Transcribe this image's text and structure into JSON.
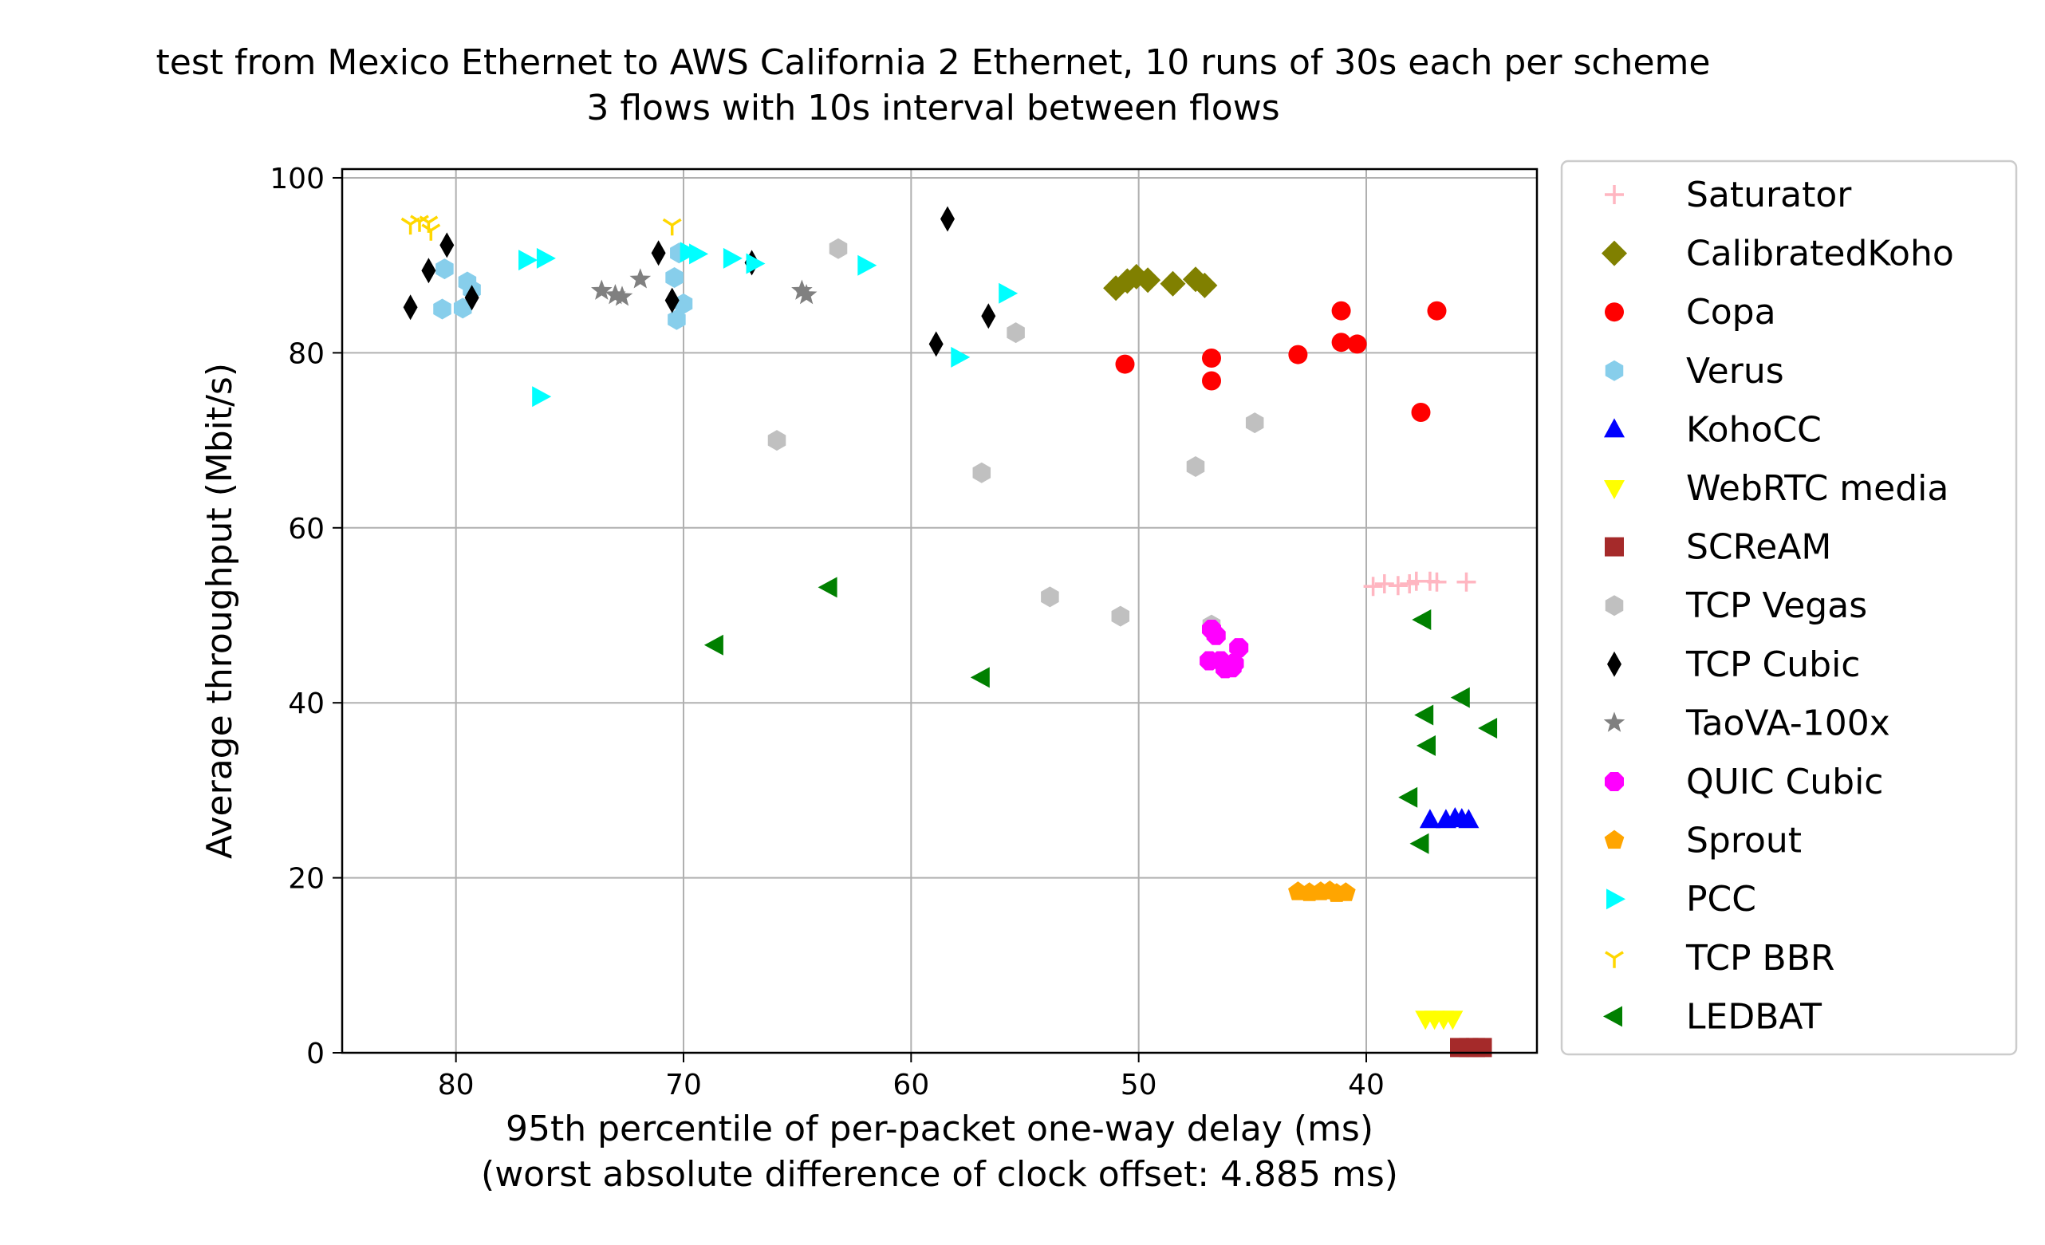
{
  "chart_data": {
    "type": "scatter",
    "title": "test from Mexico Ethernet to AWS California 2 Ethernet, 10 runs of 30s each per scheme",
    "subtitle": "3 flows with 10s interval between flows",
    "xlabel": "95th percentile of per-packet one-way delay (ms)",
    "xlabel2": "(worst absolute difference of clock offset: 4.885 ms)",
    "ylabel": "Average throughput (Mbit/s)",
    "xlim": [
      85,
      32.5
    ],
    "x_inverted": true,
    "ylim": [
      0,
      101
    ],
    "xticks": [
      80,
      70,
      60,
      50,
      40
    ],
    "yticks": [
      0,
      20,
      40,
      60,
      80,
      100
    ],
    "grid": true,
    "legend_position": "outside-right",
    "series": [
      {
        "name": "Saturator",
        "color": "#ffb6c1",
        "marker": "plus",
        "points": [
          [
            39.7,
            53.3
          ],
          [
            39.2,
            53.6
          ],
          [
            38.6,
            53.4
          ],
          [
            38.1,
            53.6
          ],
          [
            37.8,
            53.9
          ],
          [
            37.2,
            53.9
          ],
          [
            36.9,
            53.8
          ],
          [
            35.6,
            53.8
          ]
        ]
      },
      {
        "name": "CalibratedKoho",
        "color": "#808000",
        "marker": "diamond",
        "points": [
          [
            51.0,
            87.4
          ],
          [
            50.5,
            88.2
          ],
          [
            50.1,
            88.7
          ],
          [
            49.6,
            88.3
          ],
          [
            48.5,
            87.9
          ],
          [
            47.5,
            88.4
          ],
          [
            47.1,
            87.7
          ]
        ]
      },
      {
        "name": "Copa",
        "color": "#ff0000",
        "marker": "circle",
        "points": [
          [
            50.6,
            78.7
          ],
          [
            46.8,
            79.4
          ],
          [
            46.8,
            76.8
          ],
          [
            43.0,
            79.8
          ],
          [
            41.1,
            84.8
          ],
          [
            41.1,
            81.2
          ],
          [
            40.4,
            81.0
          ],
          [
            37.6,
            73.2
          ],
          [
            36.9,
            84.8
          ]
        ]
      },
      {
        "name": "Verus",
        "color": "#87ceeb",
        "marker": "hexagon",
        "points": [
          [
            80.5,
            89.6
          ],
          [
            80.6,
            85.0
          ],
          [
            79.7,
            85.1
          ],
          [
            79.5,
            88.1
          ],
          [
            79.3,
            87.2
          ],
          [
            70.4,
            88.6
          ],
          [
            70.3,
            83.8
          ],
          [
            70.0,
            85.6
          ],
          [
            70.2,
            91.4
          ]
        ]
      },
      {
        "name": "KohoCC",
        "color": "#0000ff",
        "marker": "triangle-up",
        "points": [
          [
            37.2,
            26.6
          ],
          [
            36.5,
            26.6
          ],
          [
            36.1,
            26.8
          ],
          [
            35.8,
            26.7
          ],
          [
            35.5,
            26.6
          ]
        ]
      },
      {
        "name": "WebRTC media",
        "color": "#ffff00",
        "marker": "triangle-down",
        "points": [
          [
            37.4,
            3.9
          ],
          [
            37.0,
            3.9
          ],
          [
            36.6,
            3.9
          ],
          [
            36.2,
            3.9
          ]
        ]
      },
      {
        "name": "SCReAM",
        "color": "#a52a2a",
        "marker": "square",
        "points": [
          [
            35.9,
            0.6
          ],
          [
            35.5,
            0.6
          ],
          [
            35.2,
            0.6
          ],
          [
            34.9,
            0.6
          ]
        ]
      },
      {
        "name": "TCP Vegas",
        "color": "#c0c0c0",
        "marker": "hexagon",
        "points": [
          [
            63.2,
            91.9
          ],
          [
            65.9,
            70.0
          ],
          [
            56.9,
            66.3
          ],
          [
            55.4,
            82.3
          ],
          [
            53.9,
            52.1
          ],
          [
            50.8,
            49.9
          ],
          [
            47.5,
            67.0
          ],
          [
            46.8,
            48.9
          ],
          [
            44.9,
            72.0
          ]
        ]
      },
      {
        "name": "TCP Cubic",
        "color": "#000000",
        "marker": "thin-diamond",
        "points": [
          [
            82.0,
            85.2
          ],
          [
            81.2,
            89.4
          ],
          [
            80.4,
            92.3
          ],
          [
            79.3,
            86.3
          ],
          [
            71.1,
            91.4
          ],
          [
            70.5,
            86.0
          ],
          [
            67.0,
            90.3
          ],
          [
            58.9,
            81.0
          ],
          [
            58.4,
            95.3
          ],
          [
            56.6,
            84.2
          ]
        ]
      },
      {
        "name": "TaoVA-100x",
        "color": "#808080",
        "marker": "star",
        "points": [
          [
            73.6,
            87.1
          ],
          [
            73.0,
            86.6
          ],
          [
            72.7,
            86.4
          ],
          [
            71.9,
            88.4
          ],
          [
            64.8,
            87.1
          ],
          [
            64.6,
            86.6
          ]
        ]
      },
      {
        "name": "QUIC Cubic",
        "color": "#ff00ff",
        "marker": "octagon",
        "points": [
          [
            46.8,
            48.4
          ],
          [
            46.6,
            47.7
          ],
          [
            46.9,
            44.8
          ],
          [
            46.4,
            44.8
          ],
          [
            46.2,
            43.9
          ],
          [
            45.9,
            44.0
          ],
          [
            45.8,
            44.5
          ],
          [
            45.6,
            46.3
          ]
        ]
      },
      {
        "name": "Sprout",
        "color": "#ffa500",
        "marker": "pentagon",
        "points": [
          [
            43.0,
            18.4
          ],
          [
            42.5,
            18.3
          ],
          [
            42.0,
            18.4
          ],
          [
            41.6,
            18.5
          ],
          [
            41.3,
            18.2
          ],
          [
            40.9,
            18.3
          ]
        ]
      },
      {
        "name": "PCC",
        "color": "#00ffff",
        "marker": "triangle-right",
        "points": [
          [
            76.9,
            90.6
          ],
          [
            76.1,
            90.8
          ],
          [
            76.3,
            75.0
          ],
          [
            69.8,
            91.5
          ],
          [
            69.4,
            91.3
          ],
          [
            67.9,
            90.8
          ],
          [
            66.9,
            90.2
          ],
          [
            62.0,
            90.0
          ],
          [
            57.9,
            79.5
          ],
          [
            55.8,
            86.8
          ]
        ]
      },
      {
        "name": "TCP BBR",
        "color": "#ffd700",
        "marker": "tri-down",
        "points": [
          [
            82.0,
            94.7
          ],
          [
            81.6,
            95.0
          ],
          [
            81.2,
            94.9
          ],
          [
            81.1,
            94.0
          ],
          [
            70.5,
            94.6
          ]
        ]
      },
      {
        "name": "LEDBAT",
        "color": "#008000",
        "marker": "triangle-left",
        "points": [
          [
            68.6,
            46.6
          ],
          [
            63.6,
            53.2
          ],
          [
            56.9,
            42.9
          ],
          [
            37.5,
            49.5
          ],
          [
            37.4,
            38.6
          ],
          [
            37.3,
            35.1
          ],
          [
            38.1,
            29.2
          ],
          [
            37.6,
            23.9
          ],
          [
            35.8,
            40.6
          ],
          [
            34.6,
            37.1
          ]
        ]
      }
    ]
  }
}
